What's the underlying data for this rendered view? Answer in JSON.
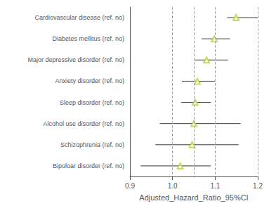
{
  "chart_data": {
    "type": "forest",
    "categories": [
      "Cardiovascular disease (ref. no)",
      "Diabetes mellitus (ref. no)",
      "Major depressive disorder (ref. no)",
      "Anxiety disorder (ref. no)",
      "Sleep disorder (ref. no)",
      "Alcohol use disorder (ref. no)",
      "Schizophrenia (ref. no)",
      "Bipoloar disorder (ref. no)"
    ],
    "values": [
      1.149,
      1.098,
      1.08,
      1.058,
      1.053,
      1.05,
      1.046,
      1.018
    ],
    "ci_low": [
      1.128,
      1.068,
      1.052,
      1.022,
      1.02,
      0.97,
      0.96,
      0.925
    ],
    "ci_high": [
      1.2,
      1.135,
      1.13,
      1.1,
      1.09,
      1.16,
      1.155,
      1.09
    ],
    "xlim": [
      0.9,
      1.2
    ],
    "xticks": [
      0.9,
      {
        "value": 1.0,
        "label": "1.0"
      },
      1.1,
      1.2
    ],
    "reference_lines": [
      1.0,
      1.05,
      1.1,
      1.2
    ],
    "xlabel": "Adjusted_Hazard_Ratio_95%CI",
    "marker": "triangle",
    "grid": false
  }
}
